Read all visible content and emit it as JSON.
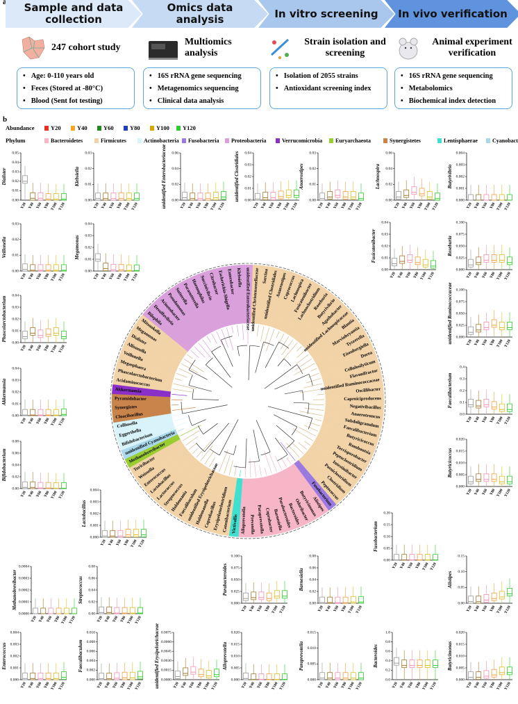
{
  "panel_a": {
    "label": "a",
    "steps": [
      {
        "title": "Sample and data collection",
        "subtitle": "247 cohort study",
        "items": [
          "Age: 0-110 years old",
          "Feces (Stored at -80°C)",
          "Blood (Sent fot testing)"
        ]
      },
      {
        "title": "Omics data analysis",
        "subtitle": "Multiomics analysis",
        "items": [
          "16S rRNA gene sequencing",
          "Metagenomics sequencing",
          "Clinical data analysis"
        ]
      },
      {
        "title": "In vitro screening",
        "subtitle": "Strain isolation and screening",
        "items": [
          "Isolation of 2055 strains",
          "Antioxidant screening index"
        ]
      },
      {
        "title": "In vivo verification",
        "subtitle": "Animal experiment verification",
        "items": [
          "16S rRNA gene sequencing",
          "Metabolomics",
          "Biochemical index detection"
        ]
      }
    ]
  },
  "panel_b": {
    "label": "b",
    "abundance": {
      "title": "Abundance",
      "groups": [
        {
          "name": "Y20",
          "color": "#e8321e",
          "box_color": "#9a9a9a"
        },
        {
          "name": "Y40",
          "color": "#f5a623",
          "box_color": "#a0782a"
        },
        {
          "name": "Y60",
          "color": "#1f8a1f",
          "box_color": "#f08fb0"
        },
        {
          "name": "Y80",
          "color": "#1f3fb5",
          "box_color": "#f0a040"
        },
        {
          "name": "Y100",
          "color": "#d9a400",
          "box_color": "#d8c020"
        },
        {
          "name": "Y120",
          "color": "#2ecc2e",
          "box_color": "#2ecc2e"
        }
      ]
    },
    "phylum": {
      "title": "Phylum",
      "items": [
        {
          "name": "Bacteroidetes",
          "color": "#f7b6c8"
        },
        {
          "name": "Firmicutes",
          "color": "#f2d3a8"
        },
        {
          "name": "Actinobacteria",
          "color": "#d8f4fa"
        },
        {
          "name": "Fusobacteria",
          "color": "#9a7ae0"
        },
        {
          "name": "Proteobacteria",
          "color": "#d9a0dc"
        },
        {
          "name": "Verrucomicrobia",
          "color": "#8a2fc7"
        },
        {
          "name": "Euryarchaeota",
          "color": "#9acd32"
        },
        {
          "name": "Synergistetes",
          "color": "#c8844a"
        },
        {
          "name": "Lentisphaerae",
          "color": "#3fe0cf"
        },
        {
          "name": "Cyanobacteria",
          "color": "#a8d8ea"
        }
      ]
    },
    "boxplots": [
      {
        "genus": "Dialister",
        "yticks": [
          "0.00",
          "0.01",
          "0.02",
          "0.03",
          "0.04",
          "0.05"
        ],
        "medians": [
          0.02,
          0.002,
          0.002,
          0.001,
          0.001,
          0.001
        ]
      },
      {
        "genus": "Klebsiella",
        "yticks": [
          "0.00",
          "0.01",
          "0.02",
          "0.03"
        ],
        "medians": [
          0.001,
          0.001,
          0.001,
          0.001,
          0.001,
          0.001
        ]
      },
      {
        "genus": "unidentified Enterobacteriaceae",
        "yticks": [
          "0.00",
          "0.02",
          "0.04",
          "0.06"
        ],
        "medians": [
          0.003,
          0.002,
          0.002,
          0.002,
          0.003,
          0.004
        ]
      },
      {
        "genus": "unidentified Clostridiales",
        "yticks": [
          "0.00",
          "0.01",
          "0.02",
          "0.03",
          "0.04"
        ],
        "medians": [
          0.001,
          0.002,
          0.002,
          0.003,
          0.004,
          0.004
        ]
      },
      {
        "genus": "Anaerostipes",
        "yticks": [
          "0.00",
          "0.01",
          "0.02",
          "0.03"
        ],
        "medians": [
          0.001,
          0.002,
          0.003,
          0.002,
          0.002,
          0.001
        ]
      },
      {
        "genus": "Lachnospira",
        "yticks": [
          "0.00",
          "0.02",
          "0.04",
          "0.06"
        ],
        "medians": [
          0.004,
          0.006,
          0.01,
          0.008,
          0.004,
          0.002
        ]
      },
      {
        "genus": "Butyrivibrio",
        "yticks": [
          "0.000",
          "0.001",
          "0.002",
          "0.003",
          "0.004"
        ],
        "medians": [
          0,
          0,
          0,
          0,
          0,
          0
        ]
      },
      {
        "genus": "Veillonella",
        "yticks": [
          "0.00",
          "0.01",
          "0.02",
          "0.03"
        ],
        "medians": [
          0.001,
          0.0005,
          0.0005,
          0.0005,
          0.0005,
          0.0005
        ]
      },
      {
        "genus": "Megamonas",
        "yticks": [
          "0.00",
          "0.01",
          "0.02",
          "0.03",
          "0.04"
        ],
        "medians": [
          0.01,
          0.002,
          0.001,
          0.001,
          0.0005,
          0.0005
        ]
      },
      {
        "genus": "Fusicatenibacter",
        "yticks": [
          "0.00",
          "0.01",
          "0.02",
          "0.03",
          "0.04"
        ],
        "medians": [
          0.005,
          0.007,
          0.008,
          0.006,
          0.004,
          0.003
        ]
      },
      {
        "genus": "Roseburia",
        "yticks": [
          "0.000",
          "0.025",
          "0.050",
          "0.075",
          "0.100"
        ],
        "medians": [
          0.01,
          0.015,
          0.02,
          0.02,
          0.02,
          0.015
        ]
      },
      {
        "genus": "Phascolarctobacterium",
        "yticks": [
          "0.00",
          "0.01",
          "0.02",
          "0.03",
          "0.04"
        ],
        "medians": [
          0.005,
          0.008,
          0.006,
          0.007,
          0.008,
          0.005
        ]
      },
      {
        "genus": "unidentified Ruminococcaceae",
        "yticks": [
          "0.000",
          "0.025",
          "0.050",
          "0.075",
          "0.100"
        ],
        "medians": [
          0.01,
          0.015,
          0.02,
          0.025,
          0.02,
          0.02
        ]
      },
      {
        "genus": "Akkermansia",
        "yticks": [
          "0.00",
          "0.01",
          "0.02",
          "0.03",
          "0.04"
        ],
        "medians": [
          0.0005,
          0.0005,
          0.0005,
          0.0005,
          0.0005,
          0.001
        ]
      },
      {
        "genus": "Faecalibacterium",
        "yticks": [
          "0.0",
          "0.1",
          "0.2",
          "0.3",
          "0.4"
        ],
        "medians": [
          0.08,
          0.07,
          0.08,
          0.06,
          0.04,
          0.04
        ]
      },
      {
        "genus": "Bifidobacterium",
        "yticks": [
          "0.00",
          "0.02",
          "0.04",
          "0.06",
          "0.08"
        ],
        "medians": [
          0.002,
          0.002,
          0.001,
          0.001,
          0.0005,
          0.0005
        ]
      },
      {
        "genus": "Butyricicoccus",
        "yticks": [
          "0.000",
          "0.005",
          "0.010",
          "0.015",
          "0.020"
        ],
        "medians": [
          0.002,
          0.003,
          0.003,
          0.003,
          0.002,
          0.002
        ]
      },
      {
        "genus": "Lactobacillus",
        "yticks": [
          "0.000",
          "0.001",
          "0.002",
          "0.003",
          "0.004"
        ],
        "medians": [
          0.0001,
          0.0001,
          0.0001,
          0.0002,
          0.0002,
          0.0002
        ]
      },
      {
        "genus": "Fusobacterium",
        "yticks": [
          "0.00",
          "0.05",
          "0.10",
          "0.15",
          "0.20"
        ],
        "medians": [
          0.001,
          0.001,
          0.001,
          0.001,
          0.001,
          0.001
        ]
      },
      {
        "genus": "Methanobrevibacter",
        "yticks": [
          "0.0000",
          "0.0001",
          "0.0002",
          "0.0003",
          "0.0004"
        ],
        "medians": [
          0,
          0,
          0,
          0,
          0,
          0
        ]
      },
      {
        "genus": "Streptococcus",
        "yticks": [
          "0.00",
          "0.02",
          "0.04",
          "0.06",
          "0.08"
        ],
        "medians": [
          0.002,
          0.002,
          0.001,
          0.001,
          0.001,
          0.001
        ]
      },
      {
        "genus": "Parabacteroides",
        "yticks": [
          "0.000",
          "0.025",
          "0.050",
          "0.075",
          "0.100"
        ],
        "medians": [
          0.01,
          0.012,
          0.012,
          0.01,
          0.015,
          0.015
        ]
      },
      {
        "genus": "Barnesiella",
        "yticks": [
          "0.00",
          "0.02",
          "0.04",
          "0.06",
          "0.08"
        ],
        "medians": [
          0.001,
          0.001,
          0.001,
          0.001,
          0.002,
          0.002
        ]
      },
      {
        "genus": "Alistipes",
        "yticks": [
          "0.00",
          "0.05",
          "0.10",
          "0.15"
        ],
        "medians": [
          0.005,
          0.005,
          0.01,
          0.015,
          0.02,
          0.03
        ]
      },
      {
        "genus": "Enterococcus",
        "yticks": [
          "0.000",
          "0.001",
          "0.002",
          "0.003",
          "0.004"
        ],
        "medians": [
          0.0001,
          0.0001,
          0.0001,
          0.0001,
          0.0001,
          0.0002
        ]
      },
      {
        "genus": "Faecalibaculum",
        "yticks": [
          "0.000",
          "0.002",
          "0.004",
          "0.006",
          "0.008",
          "0.010"
        ],
        "medians": [
          0.0002,
          0.0002,
          0.0003,
          0.0004,
          0.0004,
          0.0006
        ]
      },
      {
        "genus": "unidentified Erysipelotrichaceae",
        "yticks": [
          "0.0000",
          "0.0015",
          "0.0030",
          "0.0045",
          "0.0060",
          "0.0075"
        ],
        "medians": [
          0.0005,
          0.001,
          0.0012,
          0.0008,
          0.0006,
          0.0008
        ]
      },
      {
        "genus": "Alloprevotella",
        "yticks": [
          "0.000",
          "0.005",
          "0.010",
          "0.015",
          "0.020"
        ],
        "medians": [
          0.0005,
          0.0001,
          0.0001,
          0.0001,
          0.0001,
          0.0001
        ]
      },
      {
        "genus": "Paraprevotella",
        "yticks": [
          "0.000",
          "0.005",
          "0.010",
          "0.015"
        ],
        "medians": [
          0.0005,
          0.0005,
          0.0005,
          0.0005,
          0.0005,
          0.0005
        ]
      },
      {
        "genus": "Bacteroides",
        "yticks": [
          "0.0",
          "0.2",
          "0.4",
          "0.6",
          "0.8",
          "1.0"
        ],
        "medians": [
          0.35,
          0.3,
          0.3,
          0.3,
          0.3,
          0.3
        ]
      },
      {
        "genus": "Butyricimonas",
        "yticks": [
          "0.000",
          "0.005",
          "0.010",
          "0.015",
          "0.020"
        ],
        "medians": [
          0.001,
          0.001,
          0.0015,
          0.002,
          0.003,
          0.003
        ]
      }
    ],
    "tree": {
      "leaves": [
        {
          "name": "unidentified Christensenellaceae",
          "phylum": 1
        },
        {
          "name": "Sarcina",
          "phylum": 1
        },
        {
          "name": "unidentified Clostridiales",
          "phylum": 1
        },
        {
          "name": "Anaerostipes",
          "phylum": 1
        },
        {
          "name": "Coprococcus",
          "phylum": 1
        },
        {
          "name": "Lachnospira",
          "phylum": 1
        },
        {
          "name": "Fusicatenibacter",
          "phylum": 1
        },
        {
          "name": "Lachnoclostridium",
          "phylum": 1
        },
        {
          "name": "Roseburia",
          "phylum": 1
        },
        {
          "name": "Butyrivibrio",
          "phylum": 1
        },
        {
          "name": "Agathobacter",
          "phylum": 1
        },
        {
          "name": "unidentified Lachnospiraceae",
          "phylum": 1
        },
        {
          "name": "Blautia",
          "phylum": 1
        },
        {
          "name": "Marvinbryantia",
          "phylum": 1
        },
        {
          "name": "Tyzzerella",
          "phylum": 1
        },
        {
          "name": "Eisenbergiella",
          "phylum": 1
        },
        {
          "name": "Dorea",
          "phylum": 1
        },
        {
          "name": "Cellulosilyticum",
          "phylum": 1
        },
        {
          "name": "Flavonifractor",
          "phylum": 1
        },
        {
          "name": "unidentified Ruminococcaceae",
          "phylum": 1
        },
        {
          "name": "Oscillibacter",
          "phylum": 1
        },
        {
          "name": "Caproiciproducens",
          "phylum": 1
        },
        {
          "name": "Negativibacillus",
          "phylum": 1
        },
        {
          "name": "Anaerotruncus",
          "phylum": 1
        },
        {
          "name": "Subdoligranulum",
          "phylum": 1
        },
        {
          "name": "Faecalibacterium",
          "phylum": 1
        },
        {
          "name": "Butyricicoccus",
          "phylum": 1
        },
        {
          "name": "Romboutsia",
          "phylum": 1
        },
        {
          "name": "Terrisporobacter",
          "phylum": 1
        },
        {
          "name": "Peptoclostridium",
          "phylum": 1
        },
        {
          "name": "Intestinibacter",
          "phylum": 1
        },
        {
          "name": "Paeniclostridium",
          "phylum": 1
        },
        {
          "name": "Clostridium",
          "phylum": 1
        },
        {
          "name": "Peptococcus",
          "phylum": 1
        },
        {
          "name": "Fusobacterium",
          "phylum": 3
        },
        {
          "name": "Alistipes",
          "phylum": 0
        },
        {
          "name": "Butyricimonas",
          "phylum": 0
        },
        {
          "name": "Odoribacter",
          "phylum": 0
        },
        {
          "name": "Bacteroides",
          "phylum": 0
        },
        {
          "name": "Parabacteroides",
          "phylum": 0
        },
        {
          "name": "Barnesiella",
          "phylum": 0
        },
        {
          "name": "Coprobacter",
          "phylum": 0
        },
        {
          "name": "Paraprevotella",
          "phylum": 0
        },
        {
          "name": "Prevotella",
          "phylum": 0
        },
        {
          "name": "Alloprevotella",
          "phylum": 0
        },
        {
          "name": "Victivallis",
          "phylum": 8
        },
        {
          "name": "Catenibacterium",
          "phylum": 1
        },
        {
          "name": "Erysipelatoclostridium",
          "phylum": 1
        },
        {
          "name": "Coprobacillus",
          "phylum": 1
        },
        {
          "name": "Holdemanella",
          "phylum": 1
        },
        {
          "name": "unidentified Erysipelotrichaceae",
          "phylum": 1
        },
        {
          "name": "Faecalibaculum",
          "phylum": 1
        },
        {
          "name": "Holdemania",
          "phylum": 1
        },
        {
          "name": "Streptococcus",
          "phylum": 1
        },
        {
          "name": "Lactococcus",
          "phylum": 1
        },
        {
          "name": "Lactobacillus",
          "phylum": 1
        },
        {
          "name": "Enterococcus",
          "phylum": 1
        },
        {
          "name": "Weissella",
          "phylum": 1
        },
        {
          "name": "Turicibacter",
          "phylum": 1
        },
        {
          "name": "Methanobrevibacter",
          "phylum": 6
        },
        {
          "name": "unidentified Cyanobacteria",
          "phylum": 9
        },
        {
          "name": "Bifidobacterium",
          "phylum": 2
        },
        {
          "name": "Eggerthella",
          "phylum": 2
        },
        {
          "name": "Collinsella",
          "phylum": 2
        },
        {
          "name": "Cloacibacillus",
          "phylum": 7
        },
        {
          "name": "Synergistes",
          "phylum": 7
        },
        {
          "name": "Pyramidobacter",
          "phylum": 7
        },
        {
          "name": "Akkermansia",
          "phylum": 5
        },
        {
          "name": "Acidaminococcus",
          "phylum": 1
        },
        {
          "name": "Phascolarctobacterium",
          "phylum": 1
        },
        {
          "name": "Megasphaera",
          "phylum": 1
        },
        {
          "name": "Veillonella",
          "phylum": 1
        },
        {
          "name": "Allisonella",
          "phylum": 1
        },
        {
          "name": "Dialister",
          "phylum": 1
        },
        {
          "name": "Megamonas",
          "phylum": 1
        },
        {
          "name": "Mitsuokella",
          "phylum": 1
        },
        {
          "name": "Bilophila",
          "phylum": 4
        },
        {
          "name": "Desulfovibrio",
          "phylum": 4
        },
        {
          "name": "Acinetobacter",
          "phylum": 4
        },
        {
          "name": "Pseudomonas",
          "phylum": 4
        },
        {
          "name": "Sutterella",
          "phylum": 4
        },
        {
          "name": "Parasutterella",
          "phylum": 4
        },
        {
          "name": "Haemophilus",
          "phylum": 4
        },
        {
          "name": "Succinivibrio",
          "phylum": 4
        },
        {
          "name": "Citrobacter",
          "phylum": 4
        },
        {
          "name": "Escherichia-Shigella",
          "phylum": 4
        },
        {
          "name": "Enterobacter",
          "phylum": 4
        },
        {
          "name": "Klebsiella",
          "phylum": 4
        },
        {
          "name": "unidentified Enterobacteriaceae",
          "phylum": 4
        }
      ]
    }
  }
}
